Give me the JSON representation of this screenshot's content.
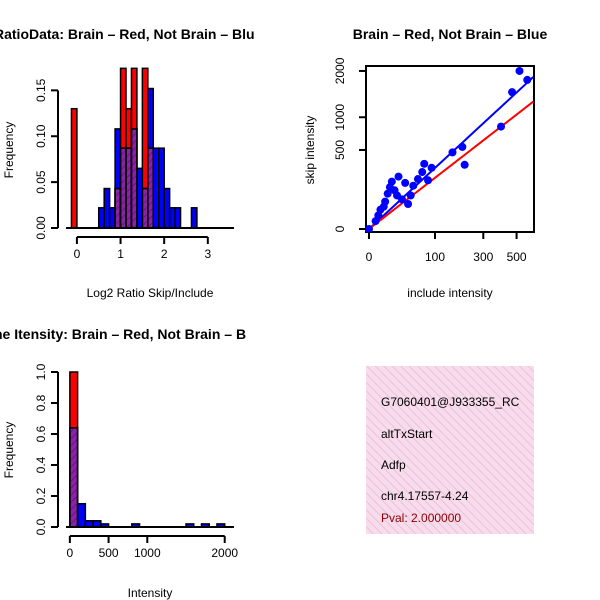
{
  "colors": {
    "red": "#ff0000",
    "blue": "#0000ff",
    "purple": "#8b22a8",
    "hatch": "#5a1070",
    "black": "#000000",
    "info_bg": "#f7dcec",
    "info_stripe": "#efbfdc",
    "pval": "#8b0000"
  },
  "chart_data": [
    {
      "type": "bar",
      "title": "RatioData: Brain - Red, Not Brain - Blu",
      "title_visible": "RatioData: Brain – Red, Not Brain – Blu",
      "xlabel": "Log2 Ratio Skip/Include",
      "ylabel": "Frequency",
      "xlim": [
        -0.25,
        3.6
      ],
      "ylim": [
        0,
        0.17
      ],
      "xticks": [
        0,
        1,
        2,
        3
      ],
      "xtick_labels": [
        "0",
        "1",
        "2",
        "3"
      ],
      "yticks": [
        0.0,
        0.05,
        0.1,
        0.15
      ],
      "ytick_labels": [
        "0.00",
        "0.05",
        "0.10",
        "0.15"
      ],
      "bin_width": 0.125,
      "series": [
        {
          "name": "Brain",
          "color": "red",
          "start": -0.125,
          "values": [
            0.13,
            0,
            0,
            0,
            0,
            0,
            0,
            0,
            0.043,
            0.174,
            0.13,
            0.174,
            0,
            0.174,
            0.087,
            0,
            0,
            0,
            0,
            0,
            0,
            0,
            0,
            0,
            0,
            0,
            0,
            0,
            0,
            0
          ]
        },
        {
          "name": "Not Brain",
          "color": "blue",
          "start": 0.5,
          "values": [
            0.022,
            0.043,
            0.022,
            0.108,
            0.087,
            0.087,
            0.108,
            0.065,
            0.043,
            0.152,
            0.087,
            0.087,
            0.043,
            0.022,
            0.022,
            0,
            0,
            0.022
          ]
        }
      ]
    },
    {
      "type": "scatter",
      "title": "Brain - Red, Not Brain - Blue",
      "title_visible": "Brain – Red, Not Brain – Blue",
      "xlabel": "include intensity",
      "ylabel": "skip intensity",
      "xlim": [
        0,
        625
      ],
      "ylim": [
        0,
        2050
      ],
      "xticks": [
        0,
        100,
        300,
        500
      ],
      "xtick_labels": [
        "0",
        "100",
        "300",
        "500"
      ],
      "yticks": [
        0,
        500,
        1000,
        2000
      ],
      "ytick_labels": [
        "0",
        "500",
        "1000",
        "2000"
      ],
      "x_scale": "sqrt",
      "y_scale": "sqrt",
      "points": [
        [
          0,
          0
        ],
        [
          1,
          5
        ],
        [
          2,
          15
        ],
        [
          3,
          30
        ],
        [
          5,
          40
        ],
        [
          6,
          60
        ],
        [
          8,
          100
        ],
        [
          10,
          140
        ],
        [
          12,
          180
        ],
        [
          15,
          120
        ],
        [
          18,
          90
        ],
        [
          20,
          220
        ],
        [
          25,
          70
        ],
        [
          30,
          170
        ],
        [
          35,
          50
        ],
        [
          40,
          90
        ],
        [
          45,
          150
        ],
        [
          55,
          200
        ],
        [
          65,
          260
        ],
        [
          70,
          340
        ],
        [
          80,
          190
        ],
        [
          90,
          300
        ],
        [
          160,
          470
        ],
        [
          200,
          540
        ],
        [
          210,
          330
        ],
        [
          400,
          840
        ],
        [
          470,
          1500
        ],
        [
          520,
          2000
        ],
        [
          575,
          1780
        ]
      ],
      "fit_lines": [
        {
          "name": "Not Brain fit",
          "color": "blue",
          "x": [
            0,
            620
          ],
          "y": [
            0,
            1850
          ]
        },
        {
          "name": "Brain fit",
          "color": "red",
          "x": [
            0,
            620
          ],
          "y": [
            0,
            1300
          ]
        }
      ]
    },
    {
      "type": "bar",
      "title": "ne Itensity: Brain - Red, Not Brain - B",
      "title_visible": "ne Itensity: Brain – Red, Not Brain – B",
      "xlabel": "Intensity",
      "ylabel": "Frequency",
      "xlim": [
        -50,
        2120
      ],
      "ylim": [
        0,
        1.0
      ],
      "xticks": [
        0,
        500,
        1000,
        2000
      ],
      "xtick_labels": [
        "0",
        "500",
        "1000",
        "2000"
      ],
      "yticks": [
        0.0,
        0.2,
        0.4,
        0.6,
        0.8,
        1.0
      ],
      "ytick_labels": [
        "0.0",
        "0.2",
        "0.4",
        "0.6",
        "0.8",
        "1.0"
      ],
      "bin_width": 100,
      "series": [
        {
          "name": "Brain",
          "color": "red",
          "start": 0,
          "values": [
            1.0,
            0,
            0,
            0,
            0,
            0,
            0,
            0,
            0,
            0,
            0,
            0,
            0,
            0,
            0,
            0,
            0,
            0,
            0,
            0
          ]
        },
        {
          "name": "Not Brain",
          "color": "blue",
          "start": 0,
          "values": [
            0.64,
            0.15,
            0.04,
            0.04,
            0.02,
            0,
            0,
            0,
            0.02,
            0,
            0,
            0,
            0,
            0,
            0,
            0.02,
            0,
            0.02,
            0,
            0.02
          ]
        }
      ]
    }
  ],
  "info_panel": {
    "id": "G7060401@J933355_RC",
    "event_type": "altTxStart",
    "gene": "Adfp",
    "location": "chr4.17557-4.24",
    "pval": "Pval: 2.000000"
  }
}
